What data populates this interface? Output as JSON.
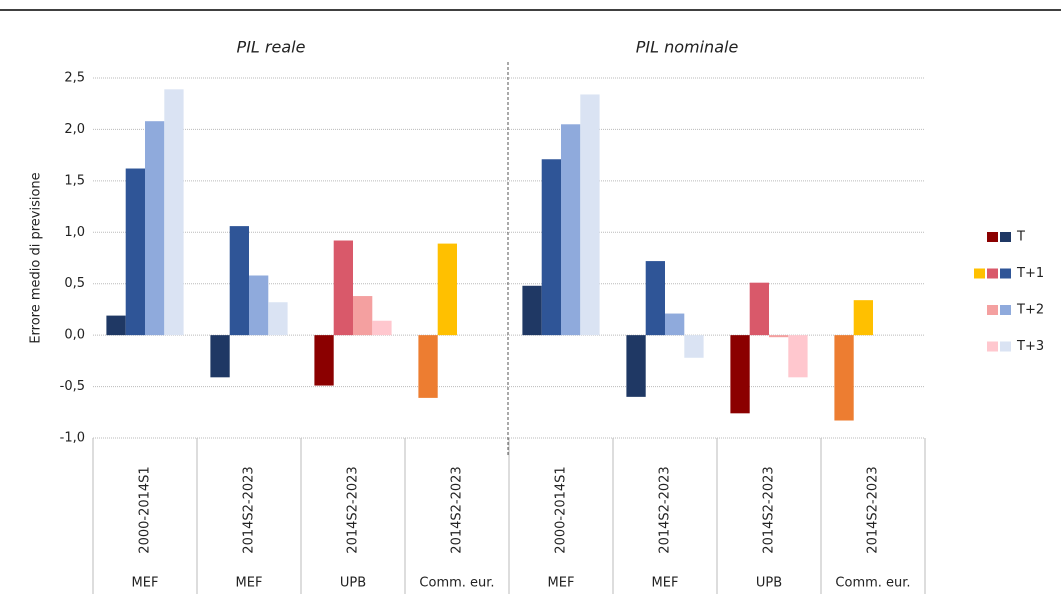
{
  "chart_data": {
    "type": "bar",
    "panel_titles": [
      "PIL reale",
      "PIL nominale"
    ],
    "ylabel": "Errore medio di previsione",
    "categories": [
      "2000-2014S1",
      "2014S2-2023",
      "2014S2-2023",
      "2014S2-2023",
      "2000-2014S1",
      "2014S2-2023",
      "2014S2-2023",
      "2014S2-2023"
    ],
    "sources": [
      "MEF",
      "MEF",
      "UPB",
      "Comm. eur.",
      "MEF",
      "MEF",
      "UPB",
      "Comm. eur."
    ],
    "ylim": [
      -1.0,
      2.5
    ],
    "yticks": [
      {
        "value": -1.0,
        "label": "-1,0"
      },
      {
        "value": -0.5,
        "label": "-0,5"
      },
      {
        "value": 0,
        "label": "0,0"
      },
      {
        "value": 0.5,
        "label": "0,5"
      },
      {
        "value": 1.0,
        "label": "1,0"
      },
      {
        "value": 1.5,
        "label": "1,5"
      },
      {
        "value": 2.0,
        "label": "2,0"
      },
      {
        "value": 2.5,
        "label": "2,5"
      }
    ],
    "grid": true,
    "legend": "right",
    "series": [
      {
        "name": "T",
        "values": [
          0.19,
          -0.41,
          -0.49,
          -0.61,
          0.48,
          -0.6,
          -0.76,
          -0.83
        ],
        "colors": [
          "#1f3864",
          "#1f3864",
          "#8b0000",
          "#ed7d31",
          "#1f3864",
          "#1f3864",
          "#8b0000",
          "#ed7d31"
        ],
        "legend_colors": [
          "#8b0000",
          "#1f3864"
        ]
      },
      {
        "name": "T+1",
        "values": [
          1.62,
          1.06,
          0.92,
          0.89,
          1.71,
          0.72,
          0.51,
          0.34
        ],
        "colors": [
          "#2f5597",
          "#2f5597",
          "#d9596a",
          "#ffc000",
          "#2f5597",
          "#2f5597",
          "#d9596a",
          "#ffc000"
        ],
        "legend_colors": [
          "#ffc000",
          "#d9596a",
          "#2f5597"
        ]
      },
      {
        "name": "T+2",
        "values": [
          2.08,
          0.58,
          0.38,
          null,
          2.05,
          0.21,
          -0.02,
          null
        ],
        "colors": [
          "#8faadc",
          "#8faadc",
          "#f4a0a0",
          "#f4a0a0",
          "#8faadc",
          "#8faadc",
          "#f4a0a0",
          "#f4a0a0"
        ],
        "legend_colors": [
          "#f4a0a0",
          "#8faadc"
        ]
      },
      {
        "name": "T+3",
        "values": [
          2.39,
          0.32,
          0.14,
          null,
          2.34,
          -0.22,
          -0.41,
          null
        ],
        "colors": [
          "#dae3f3",
          "#dae3f3",
          "#ffc7ce",
          "#ffc7ce",
          "#dae3f3",
          "#dae3f3",
          "#ffc7ce",
          "#ffc7ce"
        ],
        "legend_colors": [
          "#ffc7ce",
          "#dae3f3"
        ]
      }
    ]
  }
}
